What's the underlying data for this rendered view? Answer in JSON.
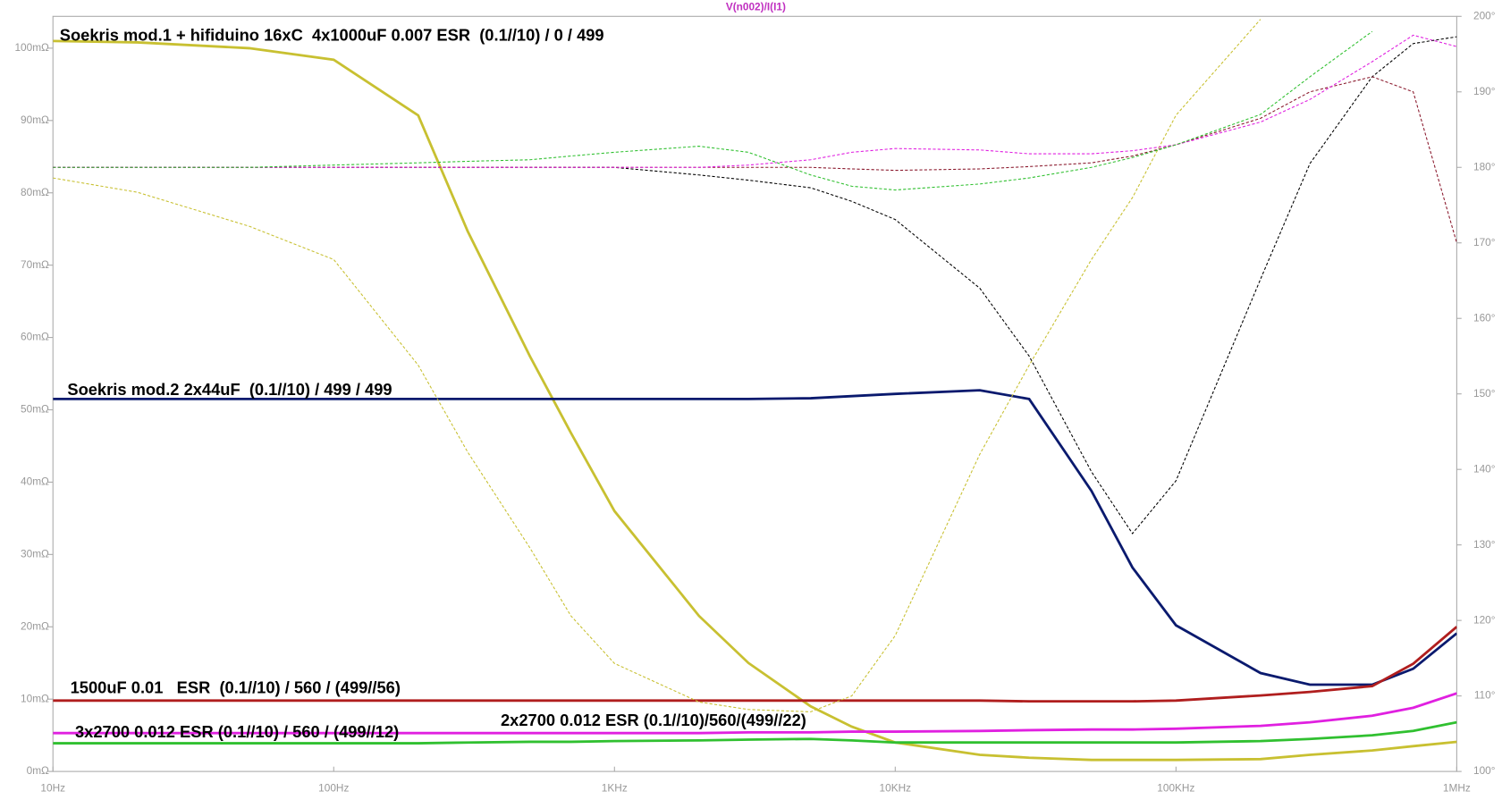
{
  "chart_data": {
    "type": "line",
    "title": "V(n002)/I(I1)",
    "xlog": true,
    "x": [
      10,
      20,
      50,
      100,
      200,
      300,
      500,
      700,
      1000,
      2000,
      3000,
      5000,
      7000,
      10000,
      20000,
      30000,
      50000,
      70000,
      100000,
      200000,
      300000,
      500000,
      700000,
      1000000
    ],
    "xlim": [
      10,
      1000000
    ],
    "xticks": [
      {
        "value": 10,
        "label": "10Hz"
      },
      {
        "value": 100,
        "label": "100Hz"
      },
      {
        "value": 1000,
        "label": "1KHz"
      },
      {
        "value": 10000,
        "label": "10KHz"
      },
      {
        "value": 100000,
        "label": "100KHz"
      },
      {
        "value": 1000000,
        "label": "1MHz"
      }
    ],
    "ylim": [
      0,
      104.4
    ],
    "yticks": [
      {
        "value": 0,
        "label": "0mΩ"
      },
      {
        "value": 10,
        "label": "10mΩ"
      },
      {
        "value": 20,
        "label": "20mΩ"
      },
      {
        "value": 30,
        "label": "30mΩ"
      },
      {
        "value": 40,
        "label": "40mΩ"
      },
      {
        "value": 50,
        "label": "50mΩ"
      },
      {
        "value": 60,
        "label": "60mΩ"
      },
      {
        "value": 70,
        "label": "70mΩ"
      },
      {
        "value": 80,
        "label": "80mΩ"
      },
      {
        "value": 90,
        "label": "90mΩ"
      },
      {
        "value": 100,
        "label": "100mΩ"
      }
    ],
    "y2lim": [
      100,
      200
    ],
    "y2ticks": [
      {
        "value": 100,
        "label": "100°"
      },
      {
        "value": 110,
        "label": "110°"
      },
      {
        "value": 120,
        "label": "120°"
      },
      {
        "value": 130,
        "label": "130°"
      },
      {
        "value": 140,
        "label": "140°"
      },
      {
        "value": 150,
        "label": "150°"
      },
      {
        "value": 160,
        "label": "160°"
      },
      {
        "value": 170,
        "label": "170°"
      },
      {
        "value": 180,
        "label": "180°"
      },
      {
        "value": 190,
        "label": "190°"
      },
      {
        "value": 200,
        "label": "200°"
      }
    ],
    "series": [
      {
        "name": "Soekris mod.1 + hifiduino 16xC  4x1000uF 0.007 ESR  (0.1//10) / 0 / 499",
        "color": "#c8c031",
        "values": [
          101,
          100.8,
          100,
          98.4,
          90.7,
          74.7,
          57.4,
          46.8,
          36,
          21.5,
          15,
          9,
          6.2,
          4,
          2.3,
          1.9,
          1.6,
          1.6,
          1.6,
          1.7,
          2.3,
          2.9,
          3.5,
          4.1
        ]
      },
      {
        "name": "Soekris mod.2 2x44uF  (0.1//10) / 499 / 499",
        "color": "#0a1a6e",
        "values": [
          51.5,
          51.5,
          51.5,
          51.5,
          51.5,
          51.5,
          51.5,
          51.5,
          51.5,
          51.5,
          51.5,
          51.6,
          51.9,
          52.2,
          52.7,
          51.5,
          38.8,
          28.2,
          20.2,
          13.6,
          12,
          12,
          14.2,
          19.1
        ]
      },
      {
        "name": "1500uF 0.01   ESR  (0.1//10) / 560 / (499//56)",
        "color": "#b01e1e",
        "values": [
          9.8,
          9.8,
          9.8,
          9.8,
          9.8,
          9.8,
          9.8,
          9.8,
          9.8,
          9.8,
          9.8,
          9.8,
          9.8,
          9.8,
          9.8,
          9.7,
          9.7,
          9.7,
          9.8,
          10.5,
          11,
          11.8,
          14.9,
          20
        ]
      },
      {
        "name": "3x2700 0.012 ESR (0.1//10) / 560 / (499//12)",
        "color": "#e020e0",
        "values": [
          5.3,
          5.3,
          5.3,
          5.3,
          5.3,
          5.3,
          5.3,
          5.3,
          5.3,
          5.3,
          5.4,
          5.4,
          5.5,
          5.5,
          5.6,
          5.7,
          5.8,
          5.8,
          5.9,
          6.3,
          6.8,
          7.7,
          8.8,
          10.8
        ]
      },
      {
        "name": "2x2700 0.012 ESR (0.1//10)/560/(499//22)",
        "color": "#30c030",
        "values": [
          3.9,
          3.9,
          3.9,
          3.9,
          3.9,
          4,
          4.1,
          4.1,
          4.2,
          4.3,
          4.4,
          4.5,
          4.3,
          4,
          4,
          4,
          4,
          4,
          4,
          4.2,
          4.5,
          5,
          5.6,
          6.8
        ]
      },
      {
        "color": "#c8c031",
        "axis": "y2",
        "dashed": true,
        "values": [
          178.6,
          176.7,
          172.2,
          167.8,
          153.8,
          142.3,
          129.6,
          120.6,
          114.3,
          109.2,
          108.2,
          107.9,
          110,
          118,
          142,
          153.8,
          167.8,
          176,
          186.9,
          199.6,
          null,
          null,
          null,
          null
        ]
      },
      {
        "color": "#000000",
        "axis": "y2",
        "dashed": true,
        "values": [
          180,
          180,
          180,
          180,
          180,
          180,
          180,
          180,
          180,
          179,
          178.3,
          177.3,
          175.5,
          173.1,
          164,
          155,
          139.7,
          131.5,
          138.5,
          165.2,
          180.5,
          192,
          196.4,
          197.3
        ]
      },
      {
        "color": "#8b1a2e",
        "axis": "y2",
        "dashed": true,
        "values": [
          180,
          180,
          180,
          180,
          180,
          180,
          180,
          180,
          180,
          180,
          180,
          180,
          179.8,
          179.6,
          179.8,
          180.1,
          180.6,
          181.5,
          183,
          186.5,
          190,
          192,
          190,
          170
        ]
      },
      {
        "color": "#e020e0",
        "axis": "y2",
        "dashed": true,
        "values": [
          180,
          180,
          180,
          180,
          180,
          180,
          180,
          180,
          180,
          180,
          180.3,
          181,
          182,
          182.5,
          182.3,
          181.8,
          181.8,
          182.2,
          183,
          186,
          189,
          194,
          197.5,
          196
        ]
      },
      {
        "color": "#30c030",
        "axis": "y2",
        "dashed": true,
        "values": [
          180,
          180,
          180,
          180.3,
          180.6,
          180.8,
          181,
          181.5,
          182,
          182.8,
          182,
          179,
          177.5,
          177,
          177.8,
          178.6,
          180,
          181.3,
          183,
          187,
          192,
          198,
          null,
          null
        ]
      }
    ]
  }
}
